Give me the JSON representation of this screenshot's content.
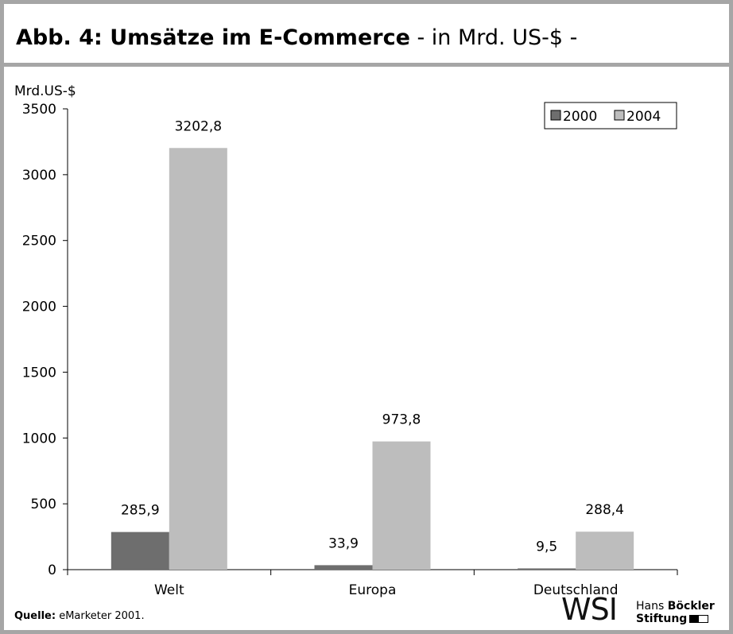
{
  "header": {
    "title_bold": "Abb. 4: Umsätze im E-Commerce",
    "title_rest": " - in Mrd. US-$ -"
  },
  "footer": {
    "source_label": "Quelle:",
    "source_text": " eMarketer 2001.",
    "logo_text": "WSI",
    "org_line1_a": "Hans ",
    "org_line1_b": "Böckler",
    "org_line2": "Stiftung"
  },
  "chart_data": {
    "type": "bar",
    "categories": [
      "Welt",
      "Europa",
      "Deutschland"
    ],
    "series": [
      {
        "name": "2000",
        "values": [
          285.9,
          33.9,
          9.5
        ],
        "labels": [
          "285,9",
          "33,9",
          "9,5"
        ],
        "color": "#6e6e6e"
      },
      {
        "name": "2004",
        "values": [
          3202.8,
          973.8,
          288.4
        ],
        "labels": [
          "3202,8",
          "973,8",
          "288,4"
        ],
        "color": "#bdbdbd"
      }
    ],
    "ylabel": "Mrd.US-$",
    "ylim": [
      0,
      3500
    ],
    "yticks": [
      0,
      500,
      1000,
      1500,
      2000,
      2500,
      3000,
      3500
    ],
    "legend_position": "top-right",
    "grid": false
  }
}
